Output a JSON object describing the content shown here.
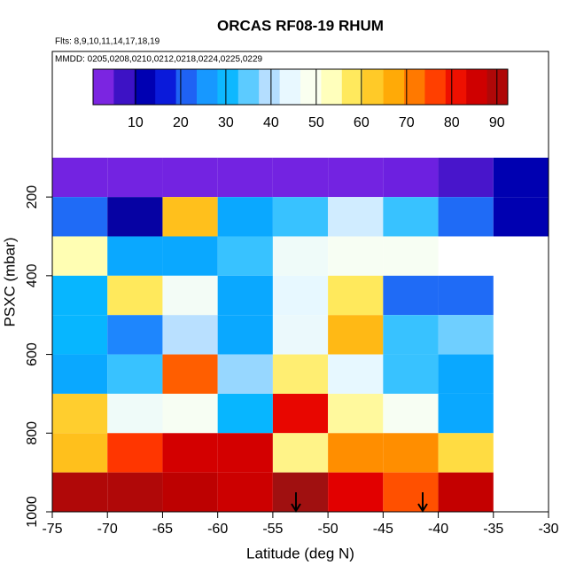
{
  "chart_data": {
    "type": "heatmap",
    "title": "ORCAS RF08-19 RHUM",
    "subtitle": "Flts: 8,9,10,11,14,17,18,19",
    "annotation": "MMDD: 0205,0208,0210,0212,0218,0224,0225,0229",
    "xlabel": "Latitude (deg N)",
    "ylabel": "PSXC (mbar)",
    "xlim": [
      -75,
      -30
    ],
    "xticks": [
      -75,
      -70,
      -65,
      -60,
      -55,
      -50,
      -45,
      -40,
      -35,
      -30
    ],
    "ylim": [
      1000,
      -170
    ],
    "yticks": [
      200,
      400,
      600,
      800,
      1000
    ],
    "x_edges": [
      -75,
      -70,
      -65,
      -60,
      -55,
      -50,
      -45,
      -40,
      -35,
      -30
    ],
    "y_edges": [
      100,
      200,
      300,
      400,
      500,
      600,
      700,
      800,
      900,
      1000
    ],
    "values": [
      [
        4,
        4,
        4,
        4,
        4,
        4,
        5,
        7,
        12
      ],
      [
        22,
        10,
        64,
        28,
        33,
        42,
        33,
        22,
        12
      ],
      [
        54,
        28,
        28,
        33,
        46,
        48,
        48,
        null,
        null
      ],
      [
        30,
        58,
        47,
        28,
        44,
        58,
        22,
        22,
        null
      ],
      [
        30,
        24,
        40,
        28,
        45,
        65,
        33,
        36,
        null
      ],
      [
        28,
        33,
        74,
        38,
        57,
        44,
        33,
        28,
        null
      ],
      [
        62,
        46,
        48,
        30,
        82,
        55,
        48,
        28,
        null
      ],
      [
        64,
        77,
        85,
        85,
        56,
        70,
        70,
        60,
        null
      ],
      [
        90,
        90,
        88,
        86,
        93,
        83,
        75,
        87,
        null
      ]
    ],
    "colorbar": {
      "lim": [
        0.6,
        92.4
      ],
      "ticks": [
        10,
        20,
        30,
        40,
        50,
        60,
        70,
        80,
        90
      ],
      "colors": [
        "#8a2be2",
        "#6a1fe0",
        "#0000a0",
        "#0000d0",
        "#2050f0",
        "#1e90ff",
        "#00b4ff",
        "#50c8ff",
        "#b0dcff",
        "#e8f8ff",
        "#fafff0",
        "#ffffb8",
        "#ffe650",
        "#ffc420",
        "#ffa200",
        "#ff6a00",
        "#ff2a00",
        "#e40000",
        "#c00000",
        "#a01010"
      ]
    }
  }
}
